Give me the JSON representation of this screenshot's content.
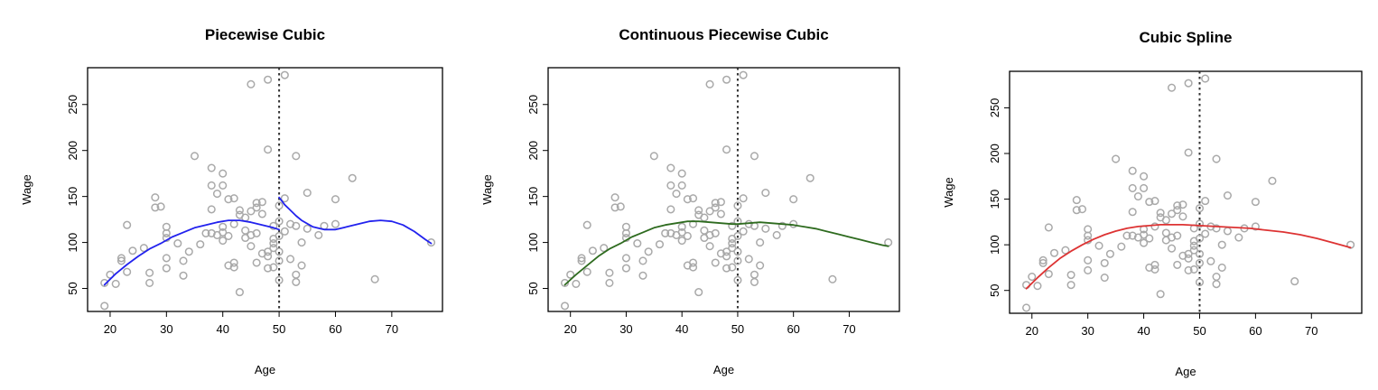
{
  "chart_data": [
    {
      "type": "scatter",
      "title": "Piecewise Cubic",
      "xlabel": "Age",
      "ylabel": "Wage",
      "xlim": [
        16,
        79
      ],
      "ylim": [
        25,
        290
      ],
      "xticks": [
        20,
        30,
        40,
        50,
        60,
        70
      ],
      "yticks": [
        50,
        100,
        150,
        200,
        250
      ],
      "knot": 50,
      "line_color": "#2222ee",
      "series": [
        {
          "type": "line",
          "segments": [
            [
              [
                19,
                54
              ],
              [
                21,
                66
              ],
              [
                23,
                76
              ],
              [
                25,
                85
              ],
              [
                27,
                93
              ],
              [
                29,
                99
              ],
              [
                31,
                106
              ],
              [
                33,
                111
              ],
              [
                35,
                116
              ],
              [
                37,
                119
              ],
              [
                39,
                122
              ],
              [
                41,
                124
              ],
              [
                43,
                124
              ],
              [
                45,
                122
              ],
              [
                47,
                119
              ],
              [
                49,
                116
              ],
              [
                50,
                114
              ]
            ],
            [
              [
                50,
                149
              ],
              [
                51,
                141
              ],
              [
                52,
                135
              ],
              [
                53,
                129
              ],
              [
                54,
                124
              ],
              [
                56,
                117
              ],
              [
                58,
                114
              ],
              [
                60,
                114
              ],
              [
                62,
                117
              ],
              [
                64,
                120
              ],
              [
                66,
                123
              ],
              [
                68,
                124
              ],
              [
                70,
                123
              ],
              [
                72,
                119
              ],
              [
                74,
                112
              ],
              [
                76,
                103
              ],
              [
                77,
                99
              ]
            ]
          ]
        }
      ]
    },
    {
      "type": "scatter",
      "title": "Continuous Piecewise Cubic",
      "xlabel": "Age",
      "ylabel": "Wage",
      "xlim": [
        16,
        79
      ],
      "ylim": [
        25,
        290
      ],
      "xticks": [
        20,
        30,
        40,
        50,
        60,
        70
      ],
      "yticks": [
        50,
        100,
        150,
        200,
        250
      ],
      "knot": 50,
      "line_color": "#2e6b1f",
      "series": [
        {
          "type": "line",
          "segments": [
            [
              [
                19,
                54
              ],
              [
                21,
                65
              ],
              [
                23,
                75
              ],
              [
                25,
                85
              ],
              [
                27,
                93
              ],
              [
                29,
                99
              ],
              [
                31,
                106
              ],
              [
                33,
                111
              ],
              [
                35,
                116
              ],
              [
                37,
                119
              ],
              [
                39,
                121
              ],
              [
                41,
                123
              ],
              [
                43,
                123
              ],
              [
                45,
                122
              ],
              [
                47,
                121
              ],
              [
                49,
                120
              ],
              [
                50,
                120
              ],
              [
                52,
                121
              ],
              [
                54,
                122
              ],
              [
                56,
                121
              ],
              [
                58,
                120
              ],
              [
                60,
                119
              ],
              [
                62,
                117
              ],
              [
                64,
                115
              ],
              [
                66,
                112
              ],
              [
                68,
                109
              ],
              [
                70,
                106
              ],
              [
                72,
                103
              ],
              [
                74,
                100
              ],
              [
                76,
                97
              ],
              [
                77,
                96
              ]
            ]
          ]
        }
      ]
    },
    {
      "type": "scatter",
      "title": "Cubic Spline",
      "xlabel": "Age",
      "ylabel": "Wage",
      "xlim": [
        16,
        79
      ],
      "ylim": [
        25,
        290
      ],
      "xticks": [
        20,
        30,
        40,
        50,
        60,
        70
      ],
      "yticks": [
        50,
        100,
        150,
        200,
        250
      ],
      "knot": 50,
      "line_color": "#dd3333",
      "series": [
        {
          "type": "line",
          "segments": [
            [
              [
                19,
                52
              ],
              [
                21,
                64
              ],
              [
                23,
                75
              ],
              [
                25,
                85
              ],
              [
                27,
                93
              ],
              [
                29,
                100
              ],
              [
                31,
                106
              ],
              [
                33,
                111
              ],
              [
                35,
                115
              ],
              [
                37,
                118
              ],
              [
                39,
                120
              ],
              [
                41,
                121
              ],
              [
                43,
                122
              ],
              [
                45,
                122
              ],
              [
                47,
                122
              ],
              [
                50,
                121
              ],
              [
                53,
                120
              ],
              [
                56,
                119
              ],
              [
                59,
                118
              ],
              [
                62,
                116
              ],
              [
                65,
                114
              ],
              [
                68,
                111
              ],
              [
                71,
                107
              ],
              [
                74,
                102
              ],
              [
                77,
                97
              ]
            ]
          ]
        }
      ]
    }
  ],
  "points": [
    [
      19,
      31
    ],
    [
      19,
      56
    ],
    [
      20,
      65
    ],
    [
      21,
      55
    ],
    [
      22,
      80
    ],
    [
      22,
      83
    ],
    [
      23,
      68
    ],
    [
      23,
      119
    ],
    [
      24,
      91
    ],
    [
      26,
      94
    ],
    [
      27,
      67
    ],
    [
      27,
      56
    ],
    [
      28,
      149
    ],
    [
      28,
      138
    ],
    [
      29,
      139
    ],
    [
      30,
      117
    ],
    [
      30,
      110
    ],
    [
      30,
      105
    ],
    [
      30,
      83
    ],
    [
      30,
      72
    ],
    [
      32,
      99
    ],
    [
      33,
      64
    ],
    [
      33,
      80
    ],
    [
      34,
      90
    ],
    [
      35,
      194
    ],
    [
      36,
      98
    ],
    [
      37,
      110
    ],
    [
      38,
      181
    ],
    [
      38,
      162
    ],
    [
      38,
      110
    ],
    [
      38,
      136
    ],
    [
      39,
      153
    ],
    [
      39,
      108
    ],
    [
      40,
      175
    ],
    [
      40,
      162
    ],
    [
      40,
      111
    ],
    [
      40,
      117
    ],
    [
      40,
      102
    ],
    [
      41,
      107
    ],
    [
      41,
      147
    ],
    [
      41,
      75
    ],
    [
      42,
      78
    ],
    [
      42,
      73
    ],
    [
      42,
      148
    ],
    [
      42,
      120
    ],
    [
      43,
      135
    ],
    [
      43,
      130
    ],
    [
      43,
      46
    ],
    [
      44,
      105
    ],
    [
      44,
      113
    ],
    [
      44,
      127
    ],
    [
      45,
      108
    ],
    [
      45,
      272
    ],
    [
      45,
      134
    ],
    [
      45,
      96
    ],
    [
      46,
      138
    ],
    [
      46,
      143
    ],
    [
      46,
      78
    ],
    [
      46,
      110
    ],
    [
      47,
      88
    ],
    [
      47,
      144
    ],
    [
      47,
      131
    ],
    [
      48,
      85
    ],
    [
      48,
      72
    ],
    [
      48,
      201
    ],
    [
      48,
      277
    ],
    [
      48,
      90
    ],
    [
      49,
      94
    ],
    [
      49,
      104
    ],
    [
      49,
      118
    ],
    [
      49,
      99
    ],
    [
      49,
      73
    ],
    [
      50,
      59
    ],
    [
      50,
      140
    ],
    [
      50,
      123
    ],
    [
      50,
      107
    ],
    [
      50,
      90
    ],
    [
      50,
      80
    ],
    [
      51,
      148
    ],
    [
      51,
      282
    ],
    [
      51,
      112
    ],
    [
      52,
      82
    ],
    [
      52,
      120
    ],
    [
      53,
      194
    ],
    [
      53,
      118
    ],
    [
      53,
      57
    ],
    [
      53,
      65
    ],
    [
      54,
      100
    ],
    [
      54,
      75
    ],
    [
      55,
      115
    ],
    [
      55,
      154
    ],
    [
      57,
      108
    ],
    [
      58,
      118
    ],
    [
      60,
      120
    ],
    [
      60,
      147
    ],
    [
      63,
      170
    ],
    [
      67,
      60
    ],
    [
      77,
      100
    ]
  ]
}
